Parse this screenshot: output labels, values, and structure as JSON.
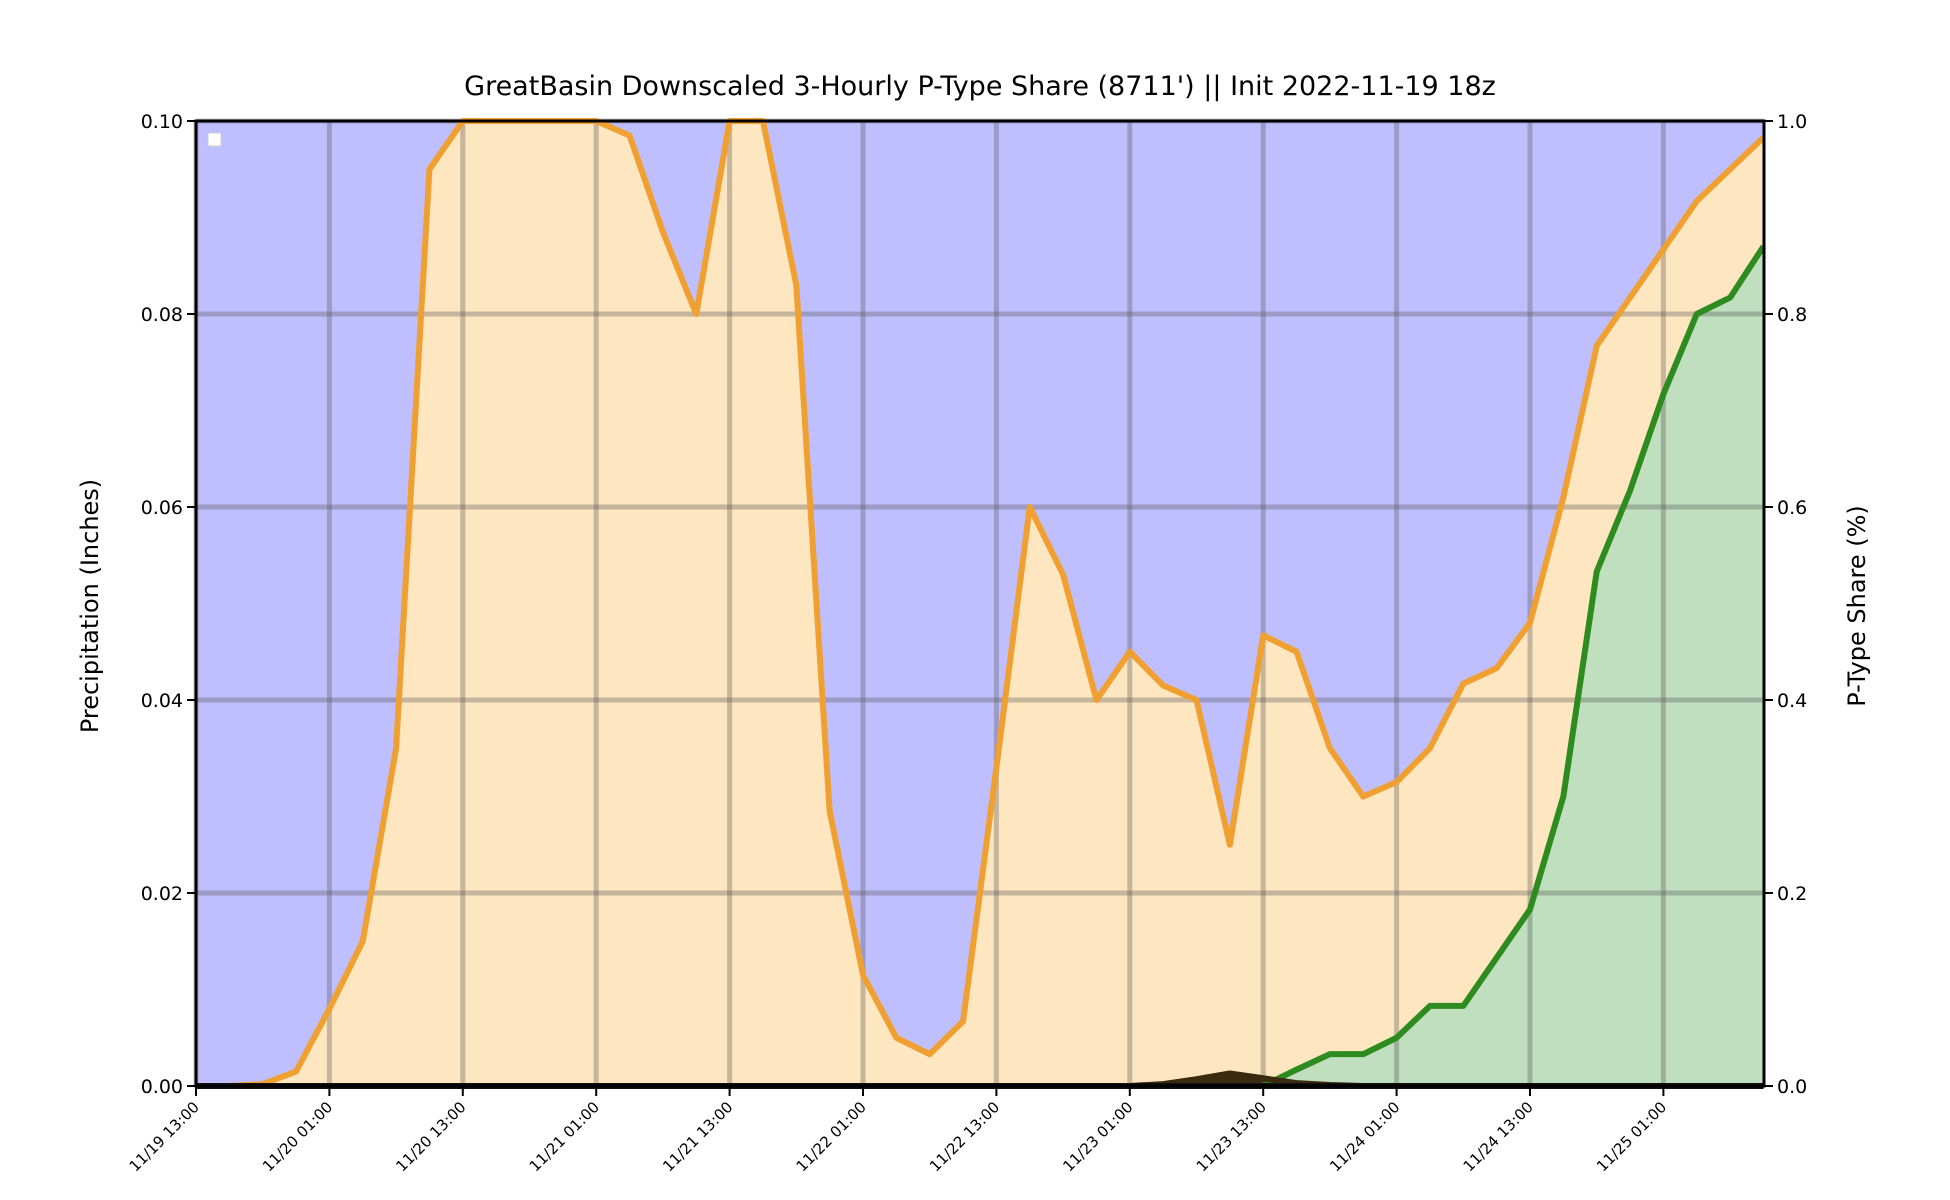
{
  "chart_data": {
    "type": "area",
    "title": "GreatBasin Downscaled 3-Hourly P-Type Share (8711') || Init 2022-11-19 18z",
    "ylabel": "Precipitation (Inches)",
    "y2label": "P-Type Share (%)",
    "ylim": [
      0,
      0.1
    ],
    "y2lim": [
      0,
      1.0
    ],
    "yticks": [
      "0.00",
      "0.02",
      "0.04",
      "0.06",
      "0.08",
      "0.10"
    ],
    "y2ticks": [
      "0.0",
      "0.2",
      "0.4",
      "0.6",
      "0.8",
      "1.0"
    ],
    "xticks": [
      "11/19 13:00",
      "11/20 01:00",
      "11/20 13:00",
      "11/21 01:00",
      "11/21 13:00",
      "11/22 01:00",
      "11/22 13:00",
      "11/23 01:00",
      "11/23 13:00",
      "11/24 01:00",
      "11/24 13:00",
      "11/25 01:00"
    ],
    "x_hours_start": "11/19 13:00",
    "x_step_hours": 3,
    "grid": true,
    "legend": "top-left (empty)",
    "background_color": "#bfbfff",
    "series": [
      {
        "color": "#f0a030",
        "fill": "#fde6c0",
        "values": [
          0,
          0,
          0.0002,
          0.0015,
          0.008,
          0.015,
          0.035,
          0.095,
          0.1,
          0.1,
          0.1,
          0.1,
          0.1,
          0.0985,
          0.0885,
          0.08,
          0.1,
          0.1,
          0.083,
          0.0285,
          0.0115,
          0.005,
          0.0033,
          0.0067,
          0.033,
          0.06,
          0.053,
          0.04,
          0.045,
          0.0415,
          0.04,
          0.025,
          0.0467,
          0.045,
          0.035,
          0.03,
          0.0315,
          0.035,
          0.0417,
          0.0433,
          0.048,
          0.061,
          0.0767,
          0.0817,
          0.0867,
          0.0917,
          0.095,
          0.0983
        ]
      },
      {
        "color": "#2e8b20",
        "fill": "#bfdfbf",
        "values": [
          0,
          0,
          0,
          0,
          0,
          0,
          0,
          0,
          0,
          0,
          0,
          0,
          0,
          0,
          0,
          0,
          0,
          0,
          0,
          0,
          0,
          0,
          0,
          0,
          0,
          0,
          0,
          0,
          0,
          0,
          0,
          0,
          0,
          0.0017,
          0.0033,
          0.0033,
          0.005,
          0.0083,
          0.0083,
          0.0133,
          0.0183,
          0.03,
          0.0533,
          0.0617,
          0.0717,
          0.08,
          0.0817,
          0.087
        ]
      },
      {
        "color": "#3a2a10",
        "fill": "#3a2a10",
        "values": [
          0,
          0,
          0,
          0,
          0,
          0,
          0,
          0,
          0,
          0,
          0,
          0,
          0,
          0,
          0,
          0,
          0,
          0,
          0,
          0,
          0,
          0,
          0,
          0,
          0,
          0,
          0,
          0,
          0,
          0.0002,
          0.0007,
          0.0013,
          0.0008,
          0.0003,
          0.0001,
          0,
          0,
          0,
          0,
          0,
          0,
          0,
          0,
          0,
          0,
          0,
          0,
          0
        ]
      },
      {
        "color": "#111111",
        "fill": "#111111",
        "values": [
          0,
          0,
          0,
          0,
          0,
          0,
          0,
          0,
          0,
          0,
          0,
          0,
          0,
          0,
          0,
          0,
          0,
          0,
          0,
          0,
          0,
          0,
          0,
          0,
          0,
          0,
          0,
          0,
          0,
          0,
          0,
          0,
          0,
          0,
          0,
          0,
          0,
          0,
          0,
          0,
          0,
          0,
          0,
          0,
          0,
          0,
          0,
          0
        ]
      }
    ]
  }
}
